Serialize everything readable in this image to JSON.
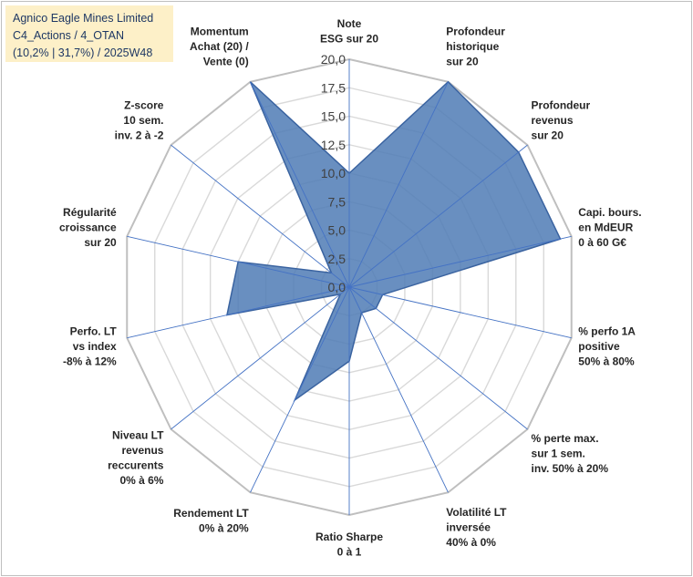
{
  "title_box": {
    "line1": "Agnico Eagle Mines Limited",
    "line2": "C4_Actions / 4_OTAN",
    "line3": "(10,2% | 31,7%) / 2025W48"
  },
  "chart_data": {
    "type": "radar",
    "r_min": 0,
    "r_max": 20,
    "r_step": 2.5,
    "tick_labels": [
      "0,0",
      "2,5",
      "5,0",
      "7,5",
      "10,0",
      "12,5",
      "15,0",
      "17,5",
      "20,0"
    ],
    "axes": [
      [
        "Note",
        "ESG sur 20"
      ],
      [
        "Profondeur",
        "historique",
        "sur 20"
      ],
      [
        "Profondeur",
        "revenus",
        "sur 20"
      ],
      [
        "Capi. bours.",
        "en MdEUR",
        "0 à 60 G€"
      ],
      [
        "% perfo 1A",
        "positive",
        "50% à 80%"
      ],
      [
        "% perte max.",
        "sur 1 sem.",
        "inv. 50% à 20%"
      ],
      [
        "Volatilité LT",
        "inversée",
        "40% à 0%"
      ],
      [
        "Ratio Sharpe",
        "0 à 1"
      ],
      [
        "Rendement LT",
        "0% à 20%"
      ],
      [
        "Niveau LT",
        "revenus",
        "reccurents",
        "0% à 6%"
      ],
      [
        "Perfo. LT",
        "vs index",
        "-8% à 12%"
      ],
      [
        "Régularité",
        "croissance",
        "sur 20"
      ],
      [
        "Z-score",
        "10 sem.",
        "inv. 2 à -2"
      ],
      [
        "Momentum",
        "Achat (20) /",
        "Vente (0)"
      ]
    ],
    "values": [
      10,
      20,
      19,
      19,
      3,
      3,
      2.5,
      6.5,
      11,
      1,
      11,
      10,
      2,
      20
    ],
    "colors": {
      "fill": "#4f7bb5",
      "stroke": "#3a63a0",
      "grid": "#d9d9d9",
      "spoke": "#4472c4"
    }
  }
}
